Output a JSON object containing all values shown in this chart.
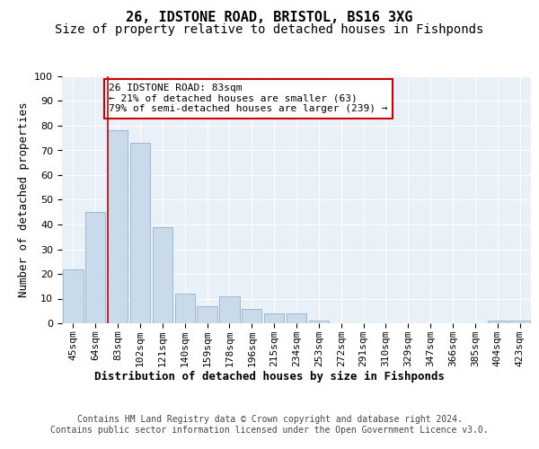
{
  "title": "26, IDSTONE ROAD, BRISTOL, BS16 3XG",
  "subtitle": "Size of property relative to detached houses in Fishponds",
  "xlabel": "Distribution of detached houses by size in Fishponds",
  "ylabel": "Number of detached properties",
  "categories": [
    "45sqm",
    "64sqm",
    "83sqm",
    "102sqm",
    "121sqm",
    "140sqm",
    "159sqm",
    "178sqm",
    "196sqm",
    "215sqm",
    "234sqm",
    "253sqm",
    "272sqm",
    "291sqm",
    "310sqm",
    "329sqm",
    "347sqm",
    "366sqm",
    "385sqm",
    "404sqm",
    "423sqm"
  ],
  "values": [
    22,
    45,
    78,
    73,
    39,
    12,
    7,
    11,
    6,
    4,
    4,
    1,
    0,
    0,
    0,
    0,
    0,
    0,
    0,
    1,
    1
  ],
  "bar_color": "#c9daea",
  "bar_edge_color": "#a0b8d0",
  "highlight_bar_index": 2,
  "highlight_line_color": "#cc0000",
  "annotation_text": "26 IDSTONE ROAD: 83sqm\n← 21% of detached houses are smaller (63)\n79% of semi-detached houses are larger (239) →",
  "annotation_box_color": "#ffffff",
  "annotation_box_edge_color": "#cc0000",
  "ylim": [
    0,
    100
  ],
  "yticks": [
    0,
    10,
    20,
    30,
    40,
    50,
    60,
    70,
    80,
    90,
    100
  ],
  "background_color": "#e8f0f8",
  "footer_text": "Contains HM Land Registry data © Crown copyright and database right 2024.\nContains public sector information licensed under the Open Government Licence v3.0.",
  "title_fontsize": 11,
  "subtitle_fontsize": 10,
  "xlabel_fontsize": 9,
  "ylabel_fontsize": 9,
  "tick_fontsize": 8,
  "annotation_fontsize": 8,
  "footer_fontsize": 7
}
